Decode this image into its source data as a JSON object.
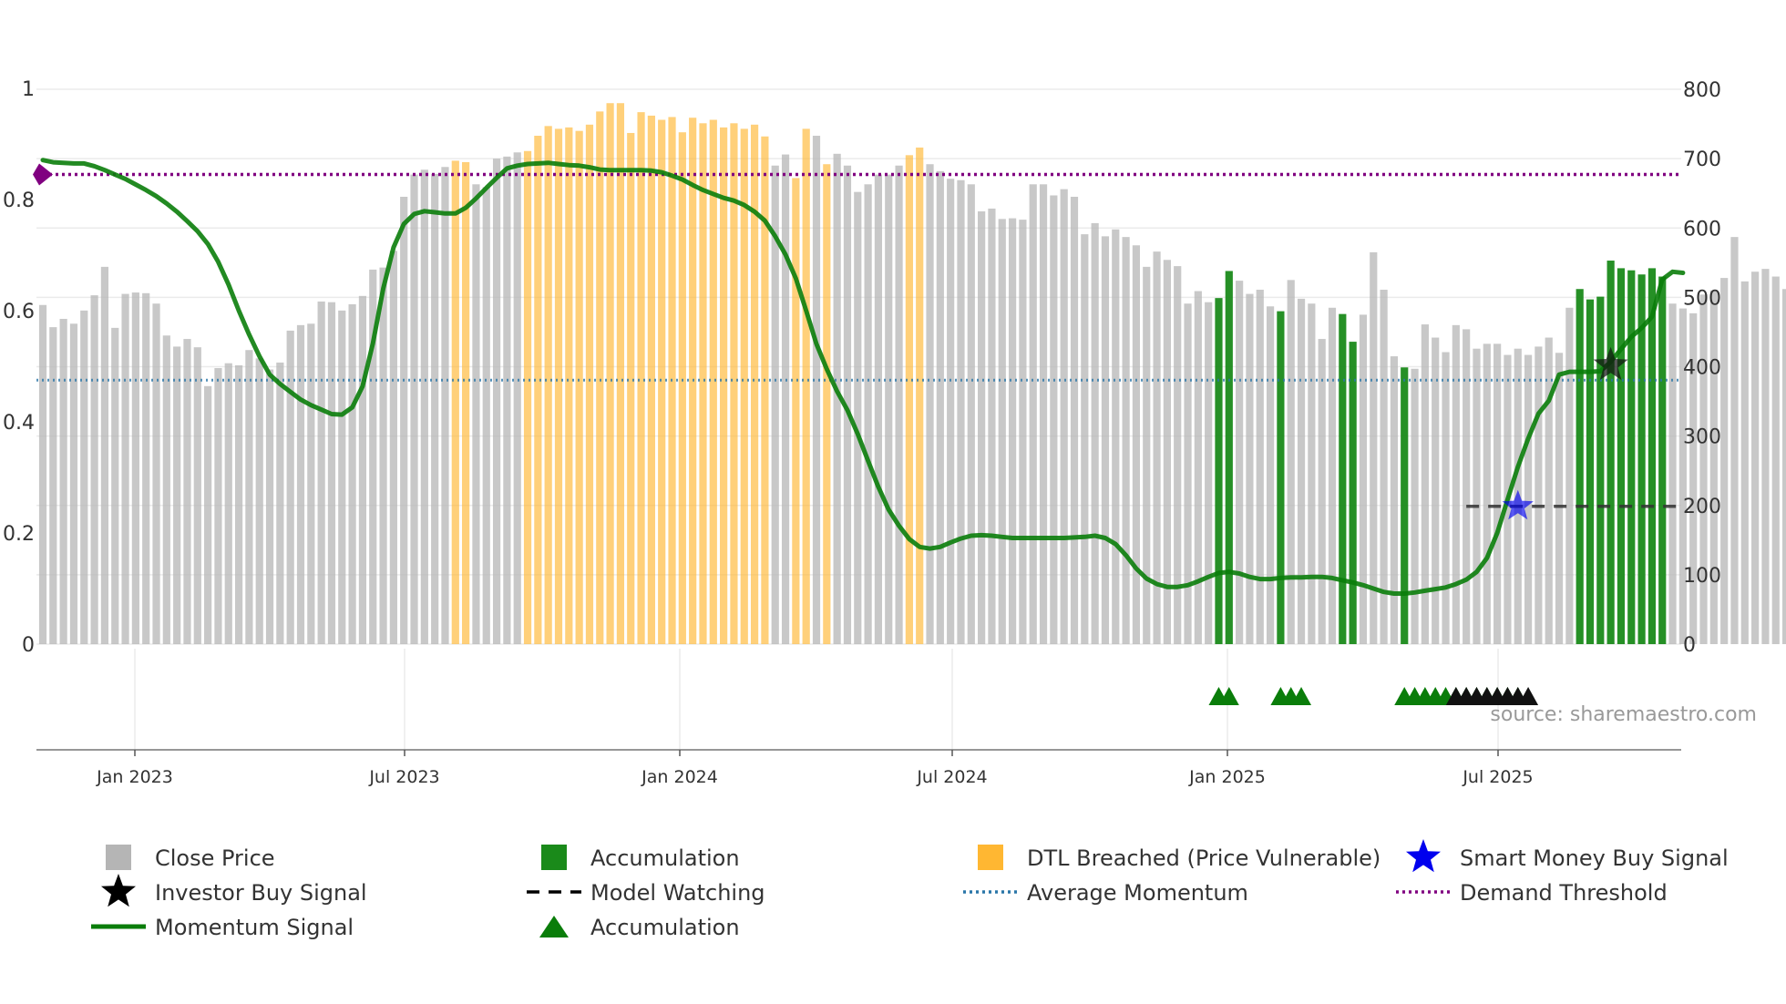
{
  "chart_data": {
    "type": "bar",
    "title": "",
    "source_label": "source: sharemaestro.com",
    "left_axis": {
      "ylim": [
        0,
        1
      ],
      "ticks": [
        "0",
        "0.2",
        "0.4",
        "0.6",
        "0.8",
        "1"
      ]
    },
    "right_axis": {
      "ylim": [
        0,
        800
      ],
      "ticks": [
        "0",
        "100",
        "200",
        "300",
        "400",
        "500",
        "600",
        "700",
        "800"
      ]
    },
    "x_axis": {
      "ticks": [
        "Jan 2023",
        "Jul 2023",
        "Jan 2024",
        "Jul 2024",
        "Jan 2025",
        "Jul 2025"
      ]
    },
    "colors": {
      "close": "#b5b5b5",
      "accumulation": "#1a8a1a",
      "dtl": "#ffb732",
      "momentum": "#0a7d0a",
      "average": "#2a76a8",
      "demand": "#800080",
      "model": "#222222"
    },
    "close_prices": [
      489,
      457,
      469,
      462,
      481,
      503,
      544,
      456,
      505,
      507,
      506,
      491,
      445,
      429,
      440,
      428,
      372,
      398,
      405,
      402,
      424,
      412,
      396,
      406,
      452,
      460,
      462,
      494,
      493,
      481,
      490,
      502,
      540,
      543,
      567,
      645,
      677,
      684,
      678,
      688,
      697,
      695,
      663,
      659,
      700,
      703,
      709,
      711,
      733,
      747,
      743,
      745,
      740,
      749,
      768,
      780,
      780,
      737,
      767,
      762,
      756,
      760,
      738,
      759,
      751,
      756,
      745,
      751,
      743,
      749,
      732,
      690,
      706,
      672,
      743,
      733,
      692,
      707,
      690,
      652,
      663,
      677,
      677,
      690,
      705,
      716,
      692,
      682,
      671,
      669,
      663,
      624,
      628,
      613,
      614,
      612,
      663,
      663,
      647,
      656,
      645,
      591,
      607,
      588,
      598,
      587,
      575,
      544,
      566,
      554,
      545,
      491,
      509,
      493,
      499,
      538,
      524,
      505,
      511,
      487,
      480,
      525,
      498,
      491,
      440,
      485,
      476,
      436,
      475,
      565,
      511,
      415,
      399,
      397,
      461,
      442,
      421,
      460,
      454,
      426,
      433,
      433,
      417,
      426,
      417,
      429,
      442,
      420,
      485,
      512,
      497,
      501,
      553,
      542,
      539,
      533,
      542,
      530,
      491,
      484,
      477,
      504,
      510,
      528,
      587,
      523,
      537,
      541,
      530,
      512
    ],
    "accumulation_bars": [
      114,
      115,
      120,
      126,
      127,
      132,
      149,
      150,
      151,
      152,
      153,
      154,
      155,
      156,
      157
    ],
    "dtl_bars": [
      40,
      41,
      47,
      48,
      49,
      50,
      51,
      52,
      53,
      54,
      55,
      56,
      57,
      58,
      59,
      60,
      61,
      62,
      63,
      64,
      65,
      66,
      67,
      68,
      69,
      70,
      73,
      74,
      76,
      84,
      85
    ],
    "momentum_signal": [
      [
        0,
        0.871
      ],
      [
        1,
        0.867
      ],
      [
        2,
        0.866
      ],
      [
        3,
        0.865
      ],
      [
        4,
        0.865
      ],
      [
        5,
        0.86
      ],
      [
        6,
        0.853
      ],
      [
        7,
        0.845
      ],
      [
        8,
        0.837
      ],
      [
        9,
        0.827
      ],
      [
        10,
        0.817
      ],
      [
        11,
        0.806
      ],
      [
        12,
        0.793
      ],
      [
        13,
        0.778
      ],
      [
        14,
        0.761
      ],
      [
        15,
        0.743
      ],
      [
        16,
        0.72
      ],
      [
        17,
        0.688
      ],
      [
        18,
        0.647
      ],
      [
        19,
        0.6
      ],
      [
        20,
        0.557
      ],
      [
        21,
        0.518
      ],
      [
        22,
        0.485
      ],
      [
        23,
        0.468
      ],
      [
        24,
        0.454
      ],
      [
        25,
        0.44
      ],
      [
        26,
        0.43
      ],
      [
        27,
        0.422
      ],
      [
        28,
        0.414
      ],
      [
        29,
        0.413
      ],
      [
        30,
        0.426
      ],
      [
        31,
        0.464
      ],
      [
        32,
        0.541
      ],
      [
        33,
        0.64
      ],
      [
        34,
        0.714
      ],
      [
        35,
        0.756
      ],
      [
        36,
        0.774
      ],
      [
        37,
        0.779
      ],
      [
        38,
        0.777
      ],
      [
        39,
        0.775
      ],
      [
        40,
        0.775
      ],
      [
        41,
        0.785
      ],
      [
        42,
        0.802
      ],
      [
        43,
        0.821
      ],
      [
        44,
        0.839
      ],
      [
        45,
        0.856
      ],
      [
        46,
        0.861
      ],
      [
        47,
        0.864
      ],
      [
        48,
        0.865
      ],
      [
        49,
        0.866
      ],
      [
        50,
        0.864
      ],
      [
        51,
        0.862
      ],
      [
        52,
        0.861
      ],
      [
        53,
        0.858
      ],
      [
        54,
        0.854
      ],
      [
        55,
        0.853
      ],
      [
        56,
        0.853
      ],
      [
        57,
        0.853
      ],
      [
        58,
        0.853
      ],
      [
        59,
        0.852
      ],
      [
        60,
        0.849
      ],
      [
        61,
        0.843
      ],
      [
        62,
        0.836
      ],
      [
        63,
        0.826
      ],
      [
        64,
        0.817
      ],
      [
        65,
        0.81
      ],
      [
        66,
        0.803
      ],
      [
        67,
        0.798
      ],
      [
        68,
        0.79
      ],
      [
        69,
        0.778
      ],
      [
        70,
        0.762
      ],
      [
        71,
        0.734
      ],
      [
        72,
        0.701
      ],
      [
        73,
        0.658
      ],
      [
        74,
        0.6
      ],
      [
        75,
        0.54
      ],
      [
        76,
        0.495
      ],
      [
        77,
        0.455
      ],
      [
        78,
        0.421
      ],
      [
        79,
        0.378
      ],
      [
        80,
        0.33
      ],
      [
        81,
        0.283
      ],
      [
        82,
        0.242
      ],
      [
        83,
        0.213
      ],
      [
        84,
        0.189
      ],
      [
        85,
        0.175
      ],
      [
        86,
        0.172
      ],
      [
        87,
        0.175
      ],
      [
        88,
        0.183
      ],
      [
        89,
        0.19
      ],
      [
        90,
        0.195
      ],
      [
        91,
        0.196
      ],
      [
        92,
        0.195
      ],
      [
        93,
        0.193
      ],
      [
        94,
        0.191
      ],
      [
        95,
        0.191
      ],
      [
        96,
        0.191
      ],
      [
        97,
        0.191
      ],
      [
        98,
        0.191
      ],
      [
        99,
        0.191
      ],
      [
        100,
        0.192
      ],
      [
        101,
        0.193
      ],
      [
        102,
        0.195
      ],
      [
        103,
        0.191
      ],
      [
        104,
        0.18
      ],
      [
        105,
        0.16
      ],
      [
        106,
        0.136
      ],
      [
        107,
        0.118
      ],
      [
        108,
        0.108
      ],
      [
        109,
        0.103
      ],
      [
        110,
        0.103
      ],
      [
        111,
        0.106
      ],
      [
        112,
        0.113
      ],
      [
        113,
        0.121
      ],
      [
        114,
        0.128
      ],
      [
        115,
        0.13
      ],
      [
        116,
        0.127
      ],
      [
        117,
        0.121
      ],
      [
        118,
        0.117
      ],
      [
        119,
        0.117
      ],
      [
        120,
        0.119
      ],
      [
        121,
        0.12
      ],
      [
        122,
        0.12
      ],
      [
        123,
        0.121
      ],
      [
        124,
        0.121
      ],
      [
        125,
        0.119
      ],
      [
        126,
        0.115
      ],
      [
        127,
        0.111
      ],
      [
        128,
        0.106
      ],
      [
        129,
        0.1
      ],
      [
        130,
        0.094
      ],
      [
        131,
        0.091
      ],
      [
        132,
        0.091
      ],
      [
        133,
        0.093
      ],
      [
        134,
        0.096
      ],
      [
        135,
        0.099
      ],
      [
        136,
        0.102
      ],
      [
        137,
        0.108
      ],
      [
        138,
        0.116
      ],
      [
        139,
        0.13
      ],
      [
        140,
        0.155
      ],
      [
        141,
        0.2
      ],
      [
        142,
        0.26
      ],
      [
        143,
        0.319
      ],
      [
        144,
        0.37
      ],
      [
        145,
        0.415
      ],
      [
        146,
        0.438
      ],
      [
        147,
        0.485
      ],
      [
        148,
        0.49
      ],
      [
        149,
        0.49
      ],
      [
        150,
        0.49
      ],
      [
        151,
        0.491
      ],
      [
        152,
        0.508
      ],
      [
        153,
        0.531
      ],
      [
        154,
        0.553
      ],
      [
        155,
        0.569
      ],
      [
        156,
        0.589
      ],
      [
        157,
        0.656
      ],
      [
        158,
        0.67
      ],
      [
        159,
        0.668
      ]
    ],
    "average_momentum": 0.475,
    "demand_threshold": 0.845,
    "model_watching": {
      "start": 138,
      "end": 159,
      "value": 0.248
    },
    "smart_money_buy_signal": {
      "index": 143,
      "value": 0.248
    },
    "investor_buy_signal": {
      "index": 152,
      "value": 0.502
    },
    "accumulation_markers": [
      114,
      115,
      120,
      121,
      122,
      132,
      133,
      134,
      135,
      136,
      137,
      138,
      139,
      140,
      141,
      142,
      143
    ],
    "investor_markers": [
      137,
      138,
      139,
      140,
      141,
      142,
      143,
      144
    ],
    "legend": [
      {
        "label": "Close Price",
        "symbol": "square",
        "color": "#b5b5b5"
      },
      {
        "label": "Accumulation",
        "symbol": "square",
        "color": "#1a8a1a"
      },
      {
        "label": "DTL Breached (Price Vulnerable)",
        "symbol": "square",
        "color": "#ffb732"
      },
      {
        "label": "Smart Money Buy Signal",
        "symbol": "star",
        "color": "#0000ee"
      },
      {
        "label": "Investor Buy Signal",
        "symbol": "star",
        "color": "#000000"
      },
      {
        "label": "Model Watching",
        "symbol": "dash",
        "color": "#000000"
      },
      {
        "label": "Average Momentum",
        "symbol": "dot",
        "color": "#2a76a8"
      },
      {
        "label": "Demand Threshold",
        "symbol": "dot",
        "color": "#800080"
      },
      {
        "label": "Momentum Signal",
        "symbol": "line",
        "color": "#0a7d0a"
      },
      {
        "label": "Accumulation",
        "symbol": "triangle",
        "color": "#0a7d0a"
      }
    ]
  }
}
